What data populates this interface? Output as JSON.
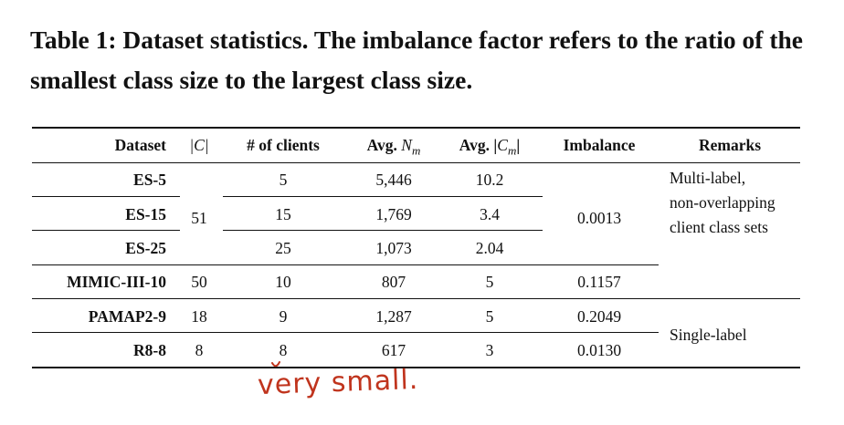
{
  "caption": "Table 1: Dataset statistics. The imbalance factor refers to the ratio of the smallest class size to the largest class size.",
  "headers": {
    "dataset": "Dataset",
    "c": "|C|",
    "clients": "# of clients",
    "avg_n": "Avg. Nm",
    "avg_c": "Avg. |Cm|",
    "imbalance": "Imbalance",
    "remarks": "Remarks"
  },
  "rows": [
    {
      "dataset": "ES-5",
      "clients": "5",
      "avg_n": "5,446",
      "avg_c": "10.2"
    },
    {
      "dataset": "ES-15",
      "clients": "15",
      "avg_n": "1,769",
      "avg_c": "3.4"
    },
    {
      "dataset": "ES-25",
      "clients": "25",
      "avg_n": "1,073",
      "avg_c": "2.04"
    },
    {
      "dataset": "MIMIC-III-10",
      "c": "50",
      "clients": "10",
      "avg_n": "807",
      "avg_c": "5",
      "imbalance": "0.1157"
    },
    {
      "dataset": "PAMAP2-9",
      "c": "18",
      "clients": "9",
      "avg_n": "1,287",
      "avg_c": "5",
      "imbalance": "0.2049"
    },
    {
      "dataset": "R8-8",
      "c": "8",
      "clients": "8",
      "avg_n": "617",
      "avg_c": "3",
      "imbalance": "0.0130"
    }
  ],
  "es_group": {
    "c": "51",
    "imbalance": "0.0013"
  },
  "remarks": {
    "multi": "Multi-label, non-overlapping client class sets",
    "single": "Single-label"
  },
  "annotation": "very small."
}
